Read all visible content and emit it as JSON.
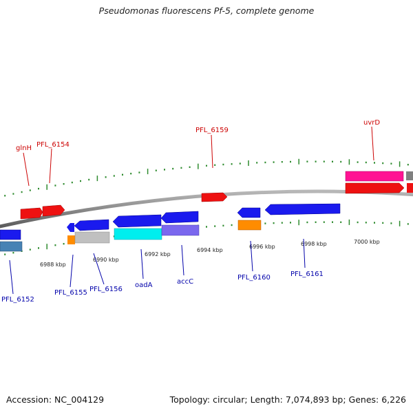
{
  "title": "Pseudomonas fluorescens Pf-5, complete genome",
  "footer": {
    "accession": "Accession: NC_004129",
    "topology": "Topology: circular; Length: 7,074,893 bp; Genes: 6,226"
  },
  "colors": {
    "backbone": "#8a8a8a",
    "tick": "#2e8b2e",
    "forward_label": "#cc0000",
    "reverse_label": "#0000aa",
    "tick_label": "#222222"
  },
  "axis_labels": [
    "6988 kbp",
    "6990 kbp",
    "6992 kbp",
    "6994 kbp",
    "6996 kbp",
    "6998 kbp",
    "7000 kbp"
  ],
  "forward_gene_labels": [
    "glnH",
    "PFL_6154",
    "PFL_6159",
    "uvrD"
  ],
  "reverse_gene_labels": [
    "PFL_6152",
    "PFL_6155",
    "PFL_6156",
    "oadA",
    "accC",
    "PFL_6160",
    "PFL_6161"
  ],
  "features": [
    {
      "strand": "+",
      "color": "#ee1111",
      "arrow": true
    },
    {
      "strand": "+",
      "color": "#ee1111",
      "arrow": true
    },
    {
      "strand": "+",
      "color": "#ee1111",
      "arrow": true
    },
    {
      "strand": "+",
      "color": "#ff1493",
      "arrow": false
    },
    {
      "strand": "+",
      "color": "#ee1111",
      "arrow": true
    },
    {
      "strand": "+",
      "color": "#ee1111",
      "arrow": false
    },
    {
      "strand": "+",
      "color": "#808080",
      "arrow": false
    },
    {
      "strand": "-",
      "color": "#1a1aee",
      "arrow": false
    },
    {
      "strand": "-",
      "color": "#1a1aee",
      "arrow": true
    },
    {
      "strand": "-",
      "color": "#1a1aee",
      "arrow": true
    },
    {
      "strand": "-",
      "color": "#1a1aee",
      "arrow": true
    },
    {
      "strand": "-",
      "color": "#1a1aee",
      "arrow": true
    },
    {
      "strand": "-",
      "color": "#1a1aee",
      "arrow": true
    },
    {
      "strand": "-",
      "color": "#1a1aee",
      "arrow": true
    },
    {
      "strand": "-",
      "color": "#4682b4",
      "arrow": false
    },
    {
      "strand": "-",
      "color": "#ff8c00",
      "arrow": false
    },
    {
      "strand": "-",
      "color": "#c0c0c0",
      "arrow": false
    },
    {
      "strand": "-",
      "color": "#00eeee",
      "arrow": false
    },
    {
      "strand": "-",
      "color": "#7b68ee",
      "arrow": false
    },
    {
      "strand": "-",
      "color": "#ff8c00",
      "arrow": false
    }
  ]
}
